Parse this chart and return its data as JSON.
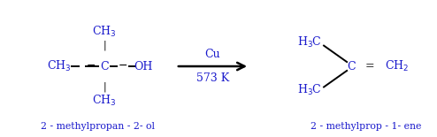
{
  "bg_color": "#ffffff",
  "text_color": "#1a1acc",
  "bond_color": "#000000",
  "arrow_color": "#000000",
  "reactant_label": "2 - methylpropan - 2- ol",
  "product_label": "2 - methylprop - 1- ene",
  "condition_top": "Cu",
  "condition_bottom": "573 K",
  "figsize": [
    4.94,
    1.55
  ],
  "dpi": 100
}
